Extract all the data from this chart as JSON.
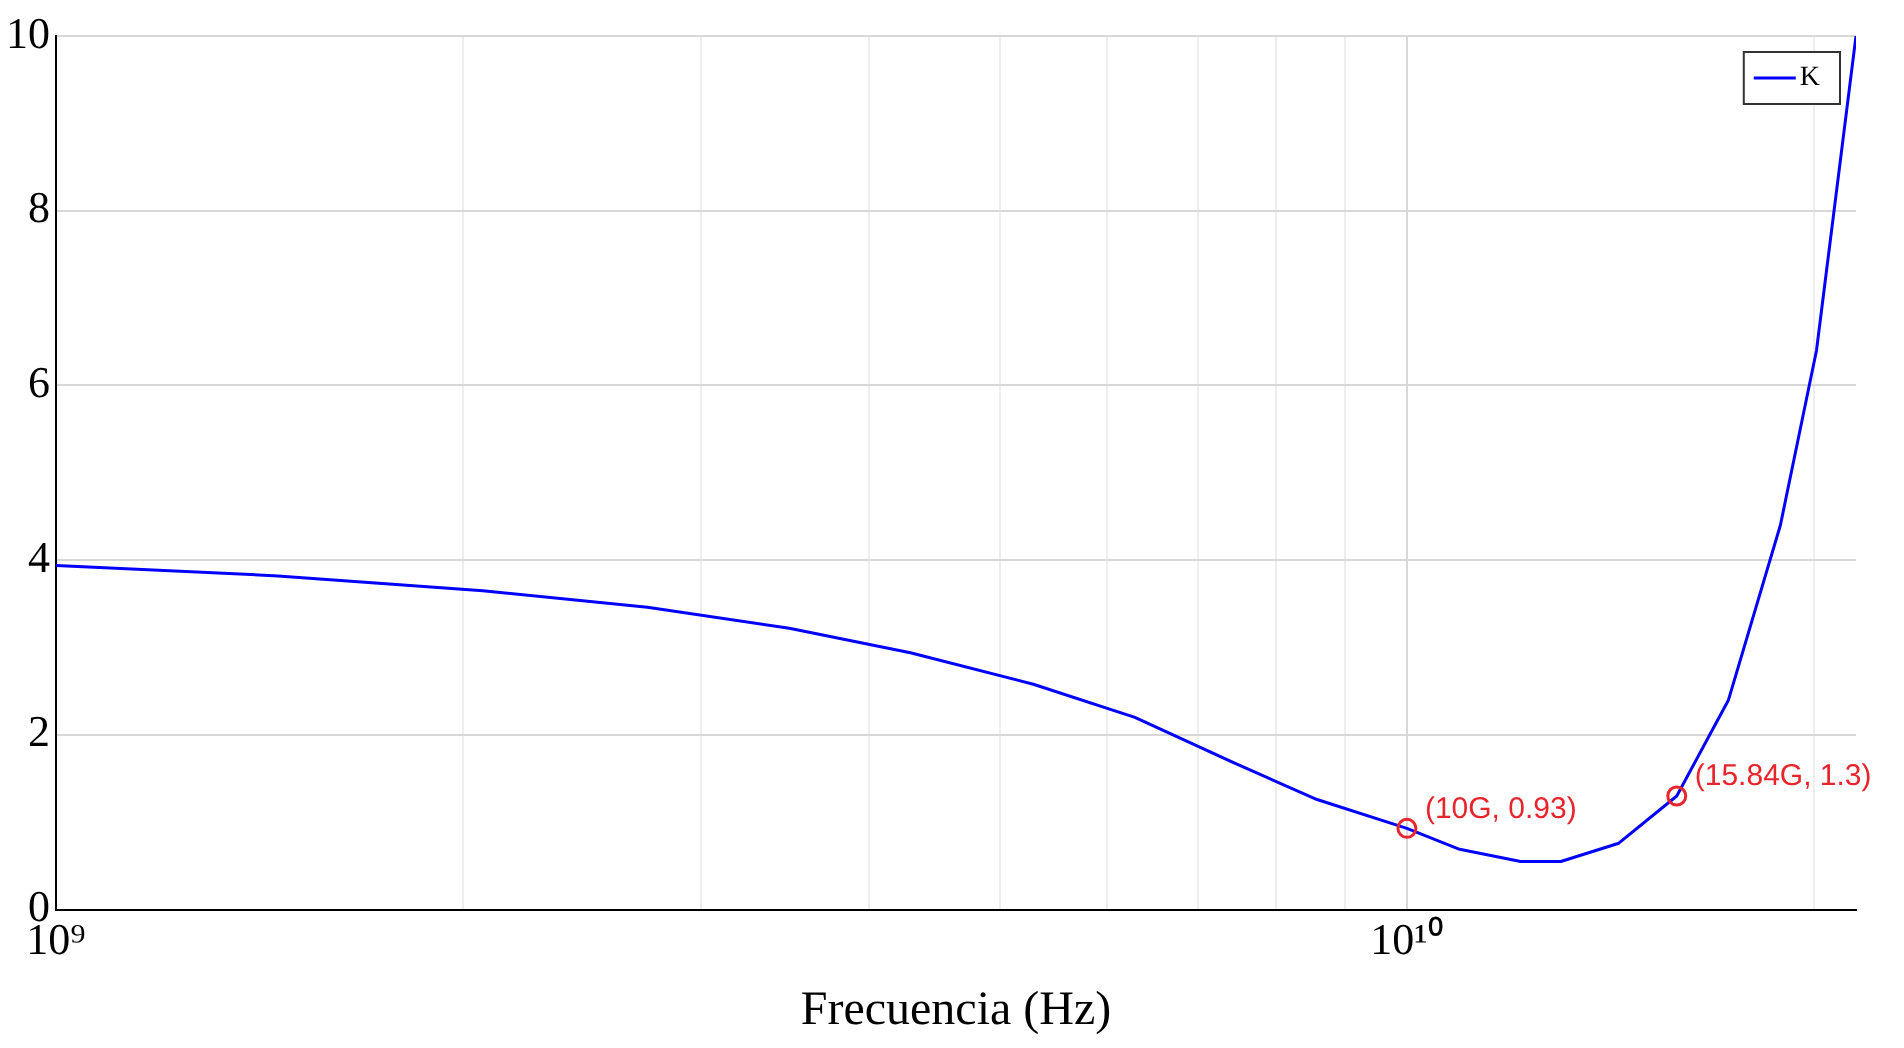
{
  "chart_data": {
    "type": "line",
    "xlabel": "Frecuencia (Hz)",
    "x": [
      1000000000,
      1460000000,
      2070000000,
      2740000000,
      3490000000,
      4290000000,
      5290000000,
      6290000000,
      7470000000,
      8580000000,
      10000000000,
      10940000000,
      12140000000,
      13000000000,
      14350000000,
      15840000000,
      17300000000,
      18900000000,
      20100000000,
      21500000000
    ],
    "series": [
      {
        "name": "K",
        "color": "#0000ff",
        "values": [
          3.94,
          3.82,
          3.65,
          3.46,
          3.22,
          2.94,
          2.58,
          2.2,
          1.67,
          1.26,
          0.93,
          0.69,
          0.55,
          0.55,
          0.76,
          1.3,
          2.4,
          4.4,
          6.4,
          10
        ]
      }
    ],
    "log": "x",
    "xlim": [
      1000000000,
      21500000000
    ],
    "xticks": [
      {
        "value": 1000000000,
        "label": "10⁹"
      },
      {
        "value": 2000000000,
        "label": null
      },
      {
        "value": 3000000000,
        "label": null
      },
      {
        "value": 4000000000,
        "label": null
      },
      {
        "value": 5000000000,
        "label": null
      },
      {
        "value": 6000000000,
        "label": null
      },
      {
        "value": 7000000000,
        "label": null
      },
      {
        "value": 8000000000,
        "label": null
      },
      {
        "value": 9000000000,
        "label": null
      },
      {
        "value": 10000000000,
        "label": "10¹⁰"
      },
      {
        "value": 20000000000,
        "label": null
      }
    ],
    "ylim": [
      0,
      10
    ],
    "yticks": [
      0,
      2,
      4,
      6,
      8,
      10
    ],
    "grid": true,
    "legend": "top right",
    "marker": "none",
    "line_style": "solid",
    "annotations": [
      {
        "text": "(10G, 0.93)",
        "x": 10000000000,
        "y": 0.93
      },
      {
        "text": "(15.84G, 1.3)",
        "x": 15840000000,
        "y": 1.3
      }
    ]
  }
}
